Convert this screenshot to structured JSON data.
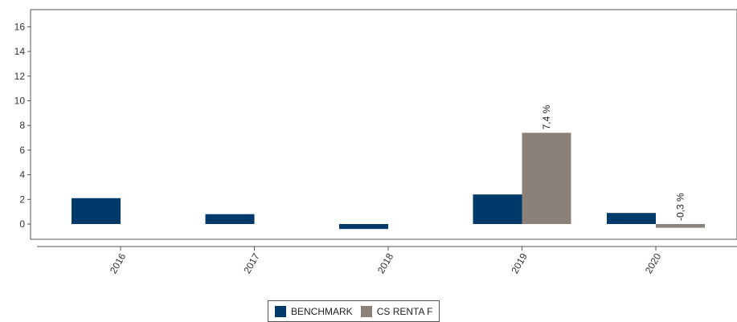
{
  "chart_data": {
    "type": "bar",
    "title": "",
    "xlabel": "",
    "ylabel": "",
    "categories": [
      "2016",
      "2017",
      "2018",
      "2019",
      "2020"
    ],
    "series": [
      {
        "name": "BENCHMARK",
        "color": "#003A6B",
        "values": [
          2.1,
          0.8,
          -0.4,
          2.4,
          0.9
        ]
      },
      {
        "name": "CS RENTA F",
        "color": "#8B8178",
        "values": [
          null,
          null,
          null,
          7.4,
          -0.3
        ]
      }
    ],
    "data_labels": [
      {
        "series": 1,
        "category": "2019",
        "text": "7,4 %"
      },
      {
        "series": 1,
        "category": "2020",
        "text": "-0,3 %"
      }
    ],
    "yticks": [
      0,
      2,
      4,
      6,
      8,
      10,
      12,
      14,
      16
    ],
    "ylim": [
      -1,
      17.5
    ],
    "grid": false,
    "legend_position": "bottom-center"
  }
}
